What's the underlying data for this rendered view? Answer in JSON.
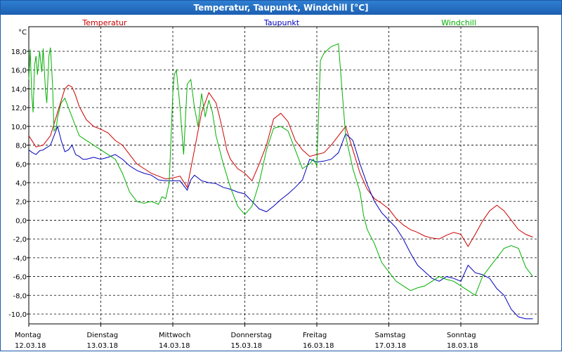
{
  "window": {
    "title": "Temperatur, Taupunkt, Windchill [°C]"
  },
  "chart_data": {
    "type": "line",
    "title": "Temperatur, Taupunkt, Windchill [°C]",
    "ylabel": "°C",
    "ylim": [
      -10.8,
      20.0
    ],
    "xlim": [
      0,
      7
    ],
    "grid": true,
    "yticks": [
      "18,0",
      "16,0",
      "14,0",
      "12,0",
      "10,0",
      "8,0",
      "6,0",
      "4,0",
      "2,0",
      "0,0",
      "-2,0",
      "-4,0",
      "-6,0",
      "-8,0",
      "-10,0"
    ],
    "ytick_values": [
      18,
      16,
      14,
      12,
      10,
      8,
      6,
      4,
      2,
      0,
      -2,
      -4,
      -6,
      -8,
      -10
    ],
    "xticks": [
      {
        "day": "Montag",
        "date": "12.03.18",
        "x": 0
      },
      {
        "day": "Dienstag",
        "date": "13.03.18",
        "x": 1
      },
      {
        "day": "Mittwoch",
        "date": "14.03.18",
        "x": 2
      },
      {
        "day": "Donnerstag",
        "date": "15.03.18",
        "x": 3
      },
      {
        "day": "Freitag",
        "date": "16.03.18",
        "x": 4
      },
      {
        "day": "Samstag",
        "date": "17.03.18",
        "x": 5
      },
      {
        "day": "Sonntag",
        "date": "18.03.18",
        "x": 6
      }
    ],
    "series": [
      {
        "name": "Temperatur",
        "color": "#cc0000",
        "x": [
          0,
          0.1,
          0.2,
          0.3,
          0.4,
          0.5,
          0.55,
          0.6,
          0.65,
          0.7,
          0.8,
          0.9,
          1.0,
          1.1,
          1.2,
          1.3,
          1.4,
          1.5,
          1.6,
          1.7,
          1.8,
          1.9,
          2.0,
          2.1,
          2.2,
          2.3,
          2.4,
          2.5,
          2.6,
          2.65,
          2.7,
          2.75,
          2.8,
          2.9,
          3.0,
          3.1,
          3.2,
          3.3,
          3.4,
          3.5,
          3.6,
          3.7,
          3.8,
          3.9,
          4.0,
          4.1,
          4.2,
          4.3,
          4.4,
          4.5,
          4.6,
          4.7,
          4.8,
          4.9,
          5.0,
          5.1,
          5.2,
          5.3,
          5.4,
          5.5,
          5.6,
          5.7,
          5.8,
          5.9,
          6.0,
          6.1,
          6.2,
          6.3,
          6.4,
          6.5,
          6.6,
          6.7,
          6.8,
          6.9,
          7.0
        ],
        "values": [
          9.0,
          7.8,
          8.0,
          9.0,
          11.5,
          14.0,
          14.4,
          14.2,
          13.3,
          12.1,
          10.7,
          10.0,
          9.7,
          9.3,
          8.5,
          8.0,
          7.0,
          6.0,
          5.5,
          5.0,
          4.7,
          4.4,
          4.5,
          4.7,
          3.5,
          7.5,
          11.5,
          13.6,
          12.5,
          11.0,
          9.3,
          7.5,
          6.5,
          5.5,
          5.0,
          4.2,
          6.0,
          8.0,
          10.8,
          11.4,
          10.5,
          8.5,
          7.5,
          6.8,
          7.0,
          7.2,
          8.0,
          9.0,
          10.0,
          7.5,
          5.0,
          3.3,
          2.3,
          1.8,
          1.2,
          0.2,
          -0.5,
          -1.0,
          -1.3,
          -1.7,
          -1.9,
          -2.0,
          -1.6,
          -1.3,
          -1.5,
          -2.8,
          -1.5,
          -0.1,
          1.0,
          1.6,
          1.0,
          0.0,
          -1.0,
          -1.5,
          -1.8
        ]
      },
      {
        "name": "Taupunkt",
        "color": "#0000bb",
        "x": [
          0,
          0.05,
          0.1,
          0.15,
          0.2,
          0.3,
          0.4,
          0.45,
          0.5,
          0.55,
          0.6,
          0.65,
          0.7,
          0.75,
          0.8,
          0.9,
          1.0,
          1.1,
          1.2,
          1.3,
          1.4,
          1.5,
          1.6,
          1.7,
          1.8,
          1.9,
          2.0,
          2.1,
          2.2,
          2.25,
          2.3,
          2.4,
          2.5,
          2.6,
          2.7,
          2.8,
          2.9,
          3.0,
          3.1,
          3.2,
          3.3,
          3.4,
          3.5,
          3.6,
          3.7,
          3.8,
          3.9,
          4.0,
          4.1,
          4.2,
          4.3,
          4.4,
          4.5,
          4.6,
          4.7,
          4.8,
          4.9,
          5.0,
          5.1,
          5.2,
          5.3,
          5.4,
          5.5,
          5.6,
          5.7,
          5.8,
          5.9,
          6.0,
          6.1,
          6.2,
          6.3,
          6.4,
          6.5,
          6.6,
          6.7,
          6.8,
          6.9,
          7.0
        ],
        "values": [
          7.5,
          7.2,
          7.0,
          7.4,
          7.5,
          8.0,
          10.0,
          8.5,
          7.3,
          7.5,
          8.0,
          7.0,
          6.8,
          6.5,
          6.5,
          6.7,
          6.5,
          6.7,
          7.0,
          6.5,
          5.8,
          5.3,
          5.0,
          4.8,
          4.3,
          4.2,
          4.2,
          4.2,
          3.2,
          4.3,
          4.8,
          4.2,
          4.0,
          3.9,
          3.5,
          3.3,
          3.0,
          2.8,
          2.0,
          1.2,
          0.9,
          1.5,
          2.2,
          2.8,
          3.5,
          4.3,
          6.5,
          6.2,
          6.3,
          6.5,
          7.2,
          9.2,
          8.5,
          6.0,
          3.8,
          2.0,
          0.8,
          0.0,
          -0.8,
          -2.0,
          -3.5,
          -4.8,
          -5.5,
          -6.2,
          -6.5,
          -6.0,
          -6.2,
          -6.5,
          -4.8,
          -5.6,
          -5.8,
          -6.2,
          -7.3,
          -8.0,
          -9.5,
          -10.3,
          -10.5,
          -10.5
        ]
      },
      {
        "name": "Windchill",
        "color": "#00b000",
        "x": [
          0,
          0.02,
          0.04,
          0.06,
          0.08,
          0.1,
          0.12,
          0.15,
          0.18,
          0.2,
          0.23,
          0.25,
          0.28,
          0.3,
          0.33,
          0.35,
          0.38,
          0.4,
          0.45,
          0.5,
          0.6,
          0.7,
          0.8,
          0.9,
          1.0,
          1.1,
          1.2,
          1.3,
          1.4,
          1.5,
          1.6,
          1.7,
          1.8,
          1.85,
          1.9,
          1.95,
          2.0,
          2.02,
          2.05,
          2.1,
          2.15,
          2.2,
          2.25,
          2.3,
          2.35,
          2.4,
          2.45,
          2.5,
          2.55,
          2.6,
          2.7,
          2.8,
          2.9,
          3.0,
          3.1,
          3.2,
          3.3,
          3.4,
          3.5,
          3.6,
          3.7,
          3.8,
          3.9,
          3.95,
          4.0,
          4.05,
          4.1,
          4.2,
          4.3,
          4.4,
          4.5,
          4.6,
          4.65,
          4.7,
          4.8,
          4.9,
          5.0,
          5.1,
          5.2,
          5.3,
          5.4,
          5.5,
          5.6,
          5.7,
          5.8,
          5.9,
          6.0,
          6.1,
          6.2,
          6.3,
          6.4,
          6.5,
          6.6,
          6.7,
          6.8,
          6.9,
          7.0
        ],
        "values": [
          15.0,
          18.2,
          13.5,
          11.5,
          16.5,
          17.5,
          15.5,
          18.0,
          15.8,
          18.3,
          14.0,
          12.5,
          17.5,
          18.4,
          14.5,
          9.5,
          9.8,
          11.0,
          12.5,
          13.0,
          11.0,
          9.0,
          8.5,
          8.0,
          7.5,
          7.0,
          6.5,
          5.0,
          3.0,
          2.0,
          1.8,
          2.0,
          1.7,
          2.5,
          2.3,
          4.0,
          13.5,
          15.5,
          16.0,
          12.0,
          7.0,
          14.5,
          15.0,
          12.0,
          10.0,
          13.5,
          11.0,
          12.8,
          11.5,
          9.0,
          6.0,
          3.5,
          1.5,
          0.6,
          1.5,
          4.0,
          7.5,
          9.8,
          10.0,
          9.5,
          7.5,
          5.5,
          6.0,
          6.5,
          5.8,
          17.0,
          17.8,
          18.5,
          18.8,
          9.0,
          5.5,
          3.0,
          0.5,
          -1.0,
          -2.5,
          -4.5,
          -5.5,
          -6.5,
          -7.0,
          -7.5,
          -7.2,
          -7.0,
          -6.5,
          -6.0,
          -6.3,
          -6.5,
          -7.0,
          -7.5,
          -8.0,
          -6.0,
          -5.0,
          -4.0,
          -3.0,
          -2.7,
          -3.0,
          -5.0,
          -6.0
        ]
      }
    ]
  }
}
